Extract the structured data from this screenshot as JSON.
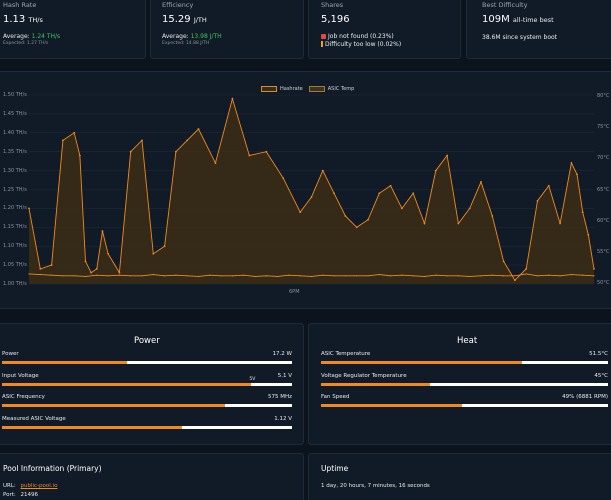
{
  "stats": {
    "hashrate": {
      "label": "Hash Rate",
      "value": "1.13",
      "unit": "TH/s",
      "avg_label": "Average:",
      "avg_value": "1.24 TH/s",
      "expected": "Expected: 1.27 TH/s"
    },
    "efficiency": {
      "label": "Efficiency",
      "value": "15.29",
      "unit": "J/TH",
      "avg_label": "Average:",
      "avg_value": "13.98 J/TH",
      "expected": "Expected: 14.88 J/TH"
    },
    "shares": {
      "label": "Shares",
      "value": "5,196",
      "error1": "Job not found (0.23%)",
      "error2": "Difficulty too low (0.02%)"
    },
    "best": {
      "label": "Best Difficulty",
      "value": "109M",
      "value_tail": "all-time best",
      "since_boot": "38.6M since system boot"
    }
  },
  "chart": {
    "legend": [
      "Hashrate",
      "ASIC Temp"
    ],
    "y_left": [
      "1.50 TH/s",
      "1.45 TH/s",
      "1.40 TH/s",
      "1.35 TH/s",
      "1.30 TH/s",
      "1.25 TH/s",
      "1.20 TH/s",
      "1.15 TH/s",
      "1.10 TH/s",
      "1.05 TH/s",
      "1.00 TH/s"
    ],
    "y_right": [
      "80°C",
      "75°C",
      "70°C",
      "65°C",
      "60°C",
      "55°C",
      "50°C"
    ],
    "x_label": "6PM",
    "colors": {
      "line": "#f08a1e",
      "fill": "#3a2c16",
      "grid": "#1f2b38"
    }
  },
  "chart_data": {
    "type": "line",
    "series": [
      {
        "name": "Hashrate",
        "unit": "TH/s",
        "axis": "left",
        "x": [
          0,
          2,
          4,
          6,
          8,
          9,
          10,
          11,
          12,
          13,
          14,
          16,
          18,
          20,
          22,
          24,
          26,
          28,
          30,
          33,
          36,
          39,
          42,
          45,
          48,
          50,
          52,
          54,
          56,
          58,
          60,
          62,
          64,
          66,
          68,
          70,
          72,
          74,
          76,
          78,
          80,
          82,
          84,
          86,
          88,
          90,
          92,
          94,
          96,
          97,
          98,
          99,
          100
        ],
        "y": [
          1.2,
          1.04,
          1.05,
          1.38,
          1.4,
          1.34,
          1.06,
          1.03,
          1.04,
          1.14,
          1.08,
          1.03,
          1.35,
          1.38,
          1.08,
          1.1,
          1.35,
          1.38,
          1.41,
          1.32,
          1.49,
          1.34,
          1.35,
          1.28,
          1.19,
          1.23,
          1.3,
          1.24,
          1.18,
          1.15,
          1.17,
          1.24,
          1.26,
          1.2,
          1.24,
          1.16,
          1.3,
          1.34,
          1.16,
          1.2,
          1.27,
          1.18,
          1.06,
          1.01,
          1.04,
          1.22,
          1.26,
          1.16,
          1.32,
          1.29,
          1.19,
          1.13,
          1.04
        ]
      },
      {
        "name": "ASIC Temp",
        "unit": "°C",
        "axis": "right",
        "x": [
          0,
          2,
          4,
          6,
          8,
          10,
          12,
          14,
          16,
          18,
          20,
          22,
          24,
          26,
          28,
          30,
          32,
          34,
          36,
          38,
          40,
          42,
          44,
          46,
          48,
          50,
          52,
          54,
          56,
          58,
          60,
          62,
          64,
          66,
          68,
          70,
          72,
          74,
          76,
          78,
          80,
          82,
          84,
          86,
          88,
          90,
          92,
          94,
          96,
          98,
          100
        ],
        "y": [
          51.6,
          51.5,
          51.4,
          51.3,
          51.3,
          51.2,
          51.4,
          51.3,
          51.4,
          51.3,
          51.3,
          51.5,
          51.3,
          51.4,
          51.3,
          51.2,
          51.4,
          51.3,
          51.3,
          51.4,
          51.2,
          51.3,
          51.2,
          51.4,
          51.3,
          51.2,
          51.4,
          51.3,
          51.3,
          51.3,
          51.3,
          51.5,
          51.3,
          51.4,
          51.3,
          51.2,
          51.4,
          51.3,
          51.3,
          51.2,
          51.3,
          51.4,
          51.3,
          51.3,
          51.6,
          51.3,
          51.4,
          51.3,
          51.5,
          51.4,
          51.3
        ]
      }
    ],
    "x_ticks": [
      "6PM"
    ],
    "ylim_left": [
      1.0,
      1.5
    ],
    "ylim_right": [
      50,
      80
    ],
    "grid": true,
    "legend_position": "top-center"
  },
  "power": {
    "title": "Power",
    "rows": [
      {
        "label": "Power",
        "value": "17.2 W",
        "fill": 0.43
      },
      {
        "label": "Input Voltage",
        "value": "5.1 V",
        "fill": 0.86,
        "marker": "5V"
      },
      {
        "label": "ASIC Frequency",
        "value": "575 MHz",
        "fill": 0.77
      },
      {
        "label": "Measured ASIC Voltage",
        "value": "1.12 V",
        "fill": 0.62
      }
    ]
  },
  "heat": {
    "title": "Heat",
    "rows": [
      {
        "label": "ASIC Temperature",
        "value": "51.5°C",
        "fill": 0.7
      },
      {
        "label": "Voltage Regulator Temperature",
        "value": "45°C",
        "fill": 0.38
      },
      {
        "label": "Fan Speed",
        "value": "49% (6881 RPM)",
        "fill": 0.49
      }
    ]
  },
  "pool": {
    "title": "Pool Information (Primary)",
    "url_label": "URL:",
    "url_value": "public-pool.io",
    "port_label": "Port:",
    "port_value": "21496"
  },
  "uptime": {
    "title": "Uptime",
    "value": "1 day, 20 hours, 7 minutes, 16 seconds"
  }
}
